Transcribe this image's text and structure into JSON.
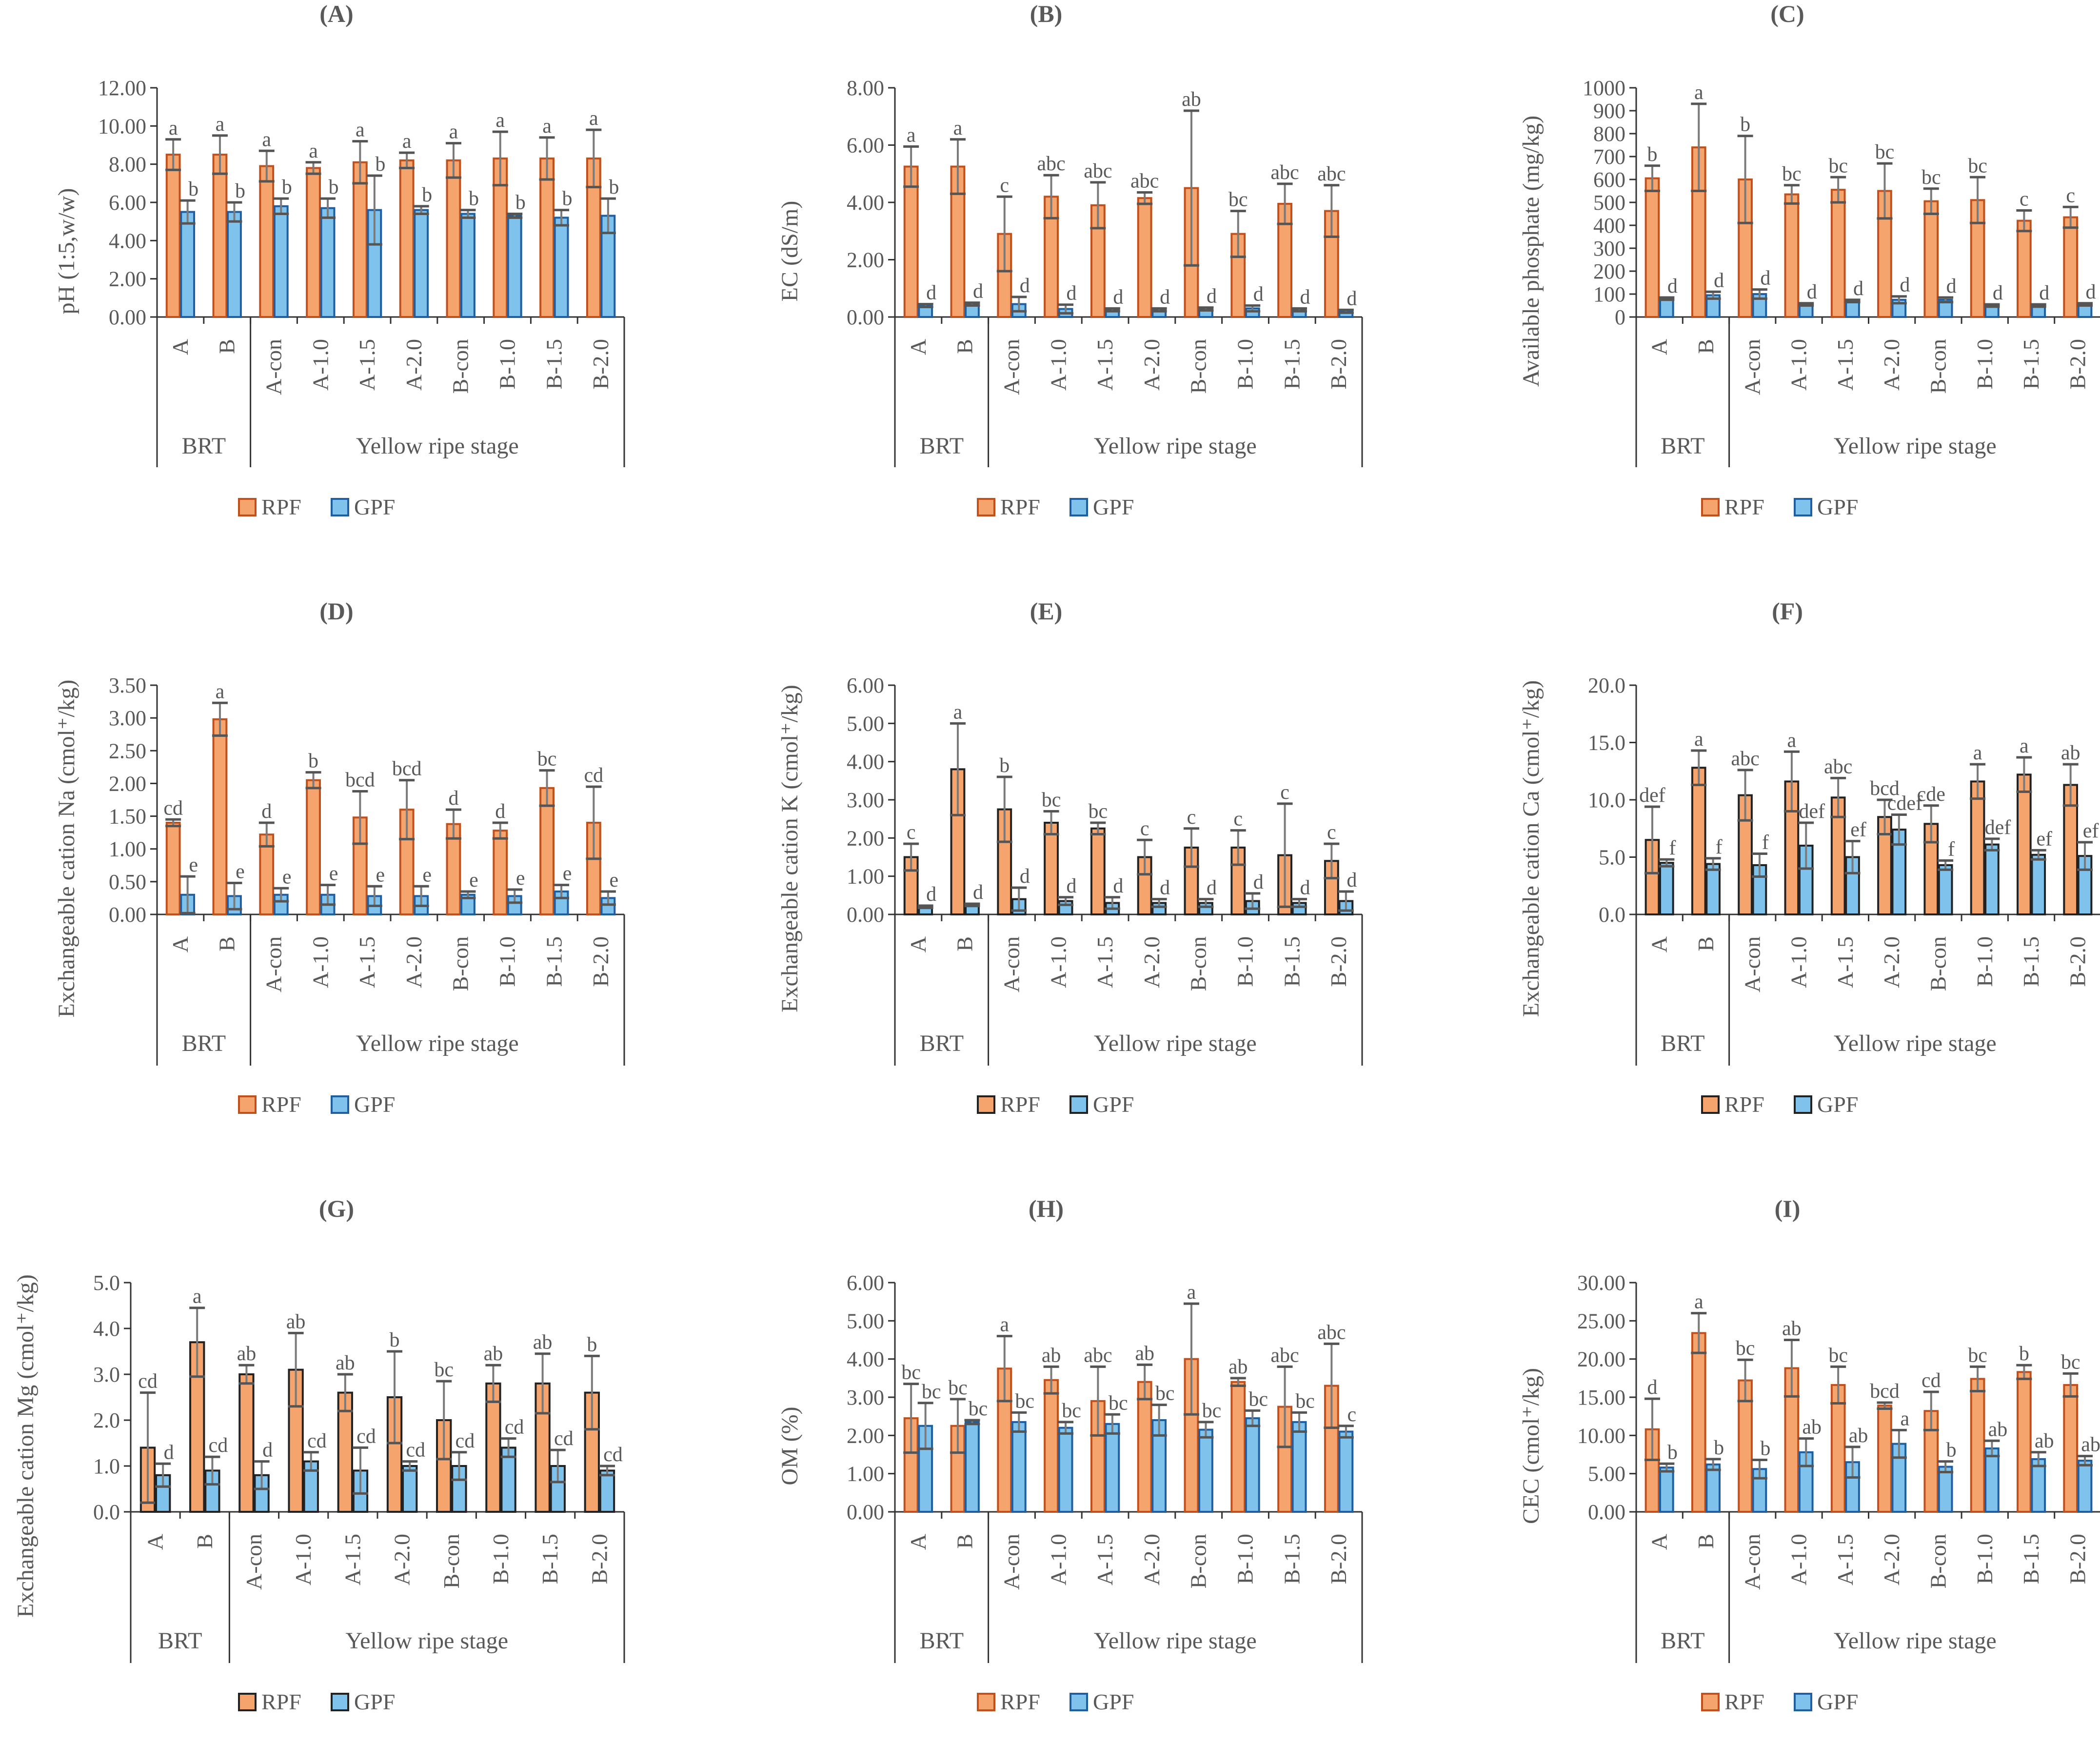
{
  "figure": {
    "group_labels": [
      "BRT",
      "Yellow ripe stage"
    ],
    "legend_labels": [
      "RPF",
      "GPF"
    ],
    "series_colors": {
      "RPF": "#F4A46C",
      "GPF": "#7FC3EC"
    },
    "bar_edge_colors": [
      "#C0501C",
      "#1F5FA0",
      "#222222"
    ],
    "error_bar_color": "#7a7a7a",
    "axis_color": "#333333",
    "text_color": "#595959"
  },
  "chart_data": [
    {
      "panel": "(A)",
      "type": "bar",
      "ylabel": "pH (1:5,w/w)",
      "ylim": [
        0,
        12
      ],
      "yticks": [
        "0.00",
        "2.00",
        "4.00",
        "6.00",
        "8.00",
        "10.00",
        "12.00"
      ],
      "categories": [
        "A",
        "B",
        "A-con",
        "A-1.0",
        "A-1.5",
        "A-2.0",
        "B-con",
        "B-1.0",
        "B-1.5",
        "B-2.0"
      ],
      "series": [
        {
          "name": "RPF",
          "values": [
            8.5,
            8.5,
            7.9,
            7.8,
            8.1,
            8.2,
            8.2,
            8.3,
            8.3,
            8.3
          ],
          "errors": [
            0.8,
            1.0,
            0.8,
            0.3,
            1.1,
            0.4,
            0.9,
            1.4,
            1.1,
            1.5
          ],
          "letters": [
            "a",
            "a",
            "a",
            "a",
            "a",
            "a",
            "a",
            "a",
            "a",
            "a"
          ]
        },
        {
          "name": "GPF",
          "values": [
            5.5,
            5.5,
            5.8,
            5.7,
            5.6,
            5.6,
            5.4,
            5.3,
            5.2,
            5.3
          ],
          "errors": [
            0.6,
            0.5,
            0.4,
            0.5,
            1.8,
            0.2,
            0.2,
            0.1,
            0.4,
            0.9
          ],
          "letters": [
            "b",
            "b",
            "b",
            "b",
            "b",
            "b",
            "b",
            "b",
            "b",
            "b"
          ]
        }
      ]
    },
    {
      "panel": "(B)",
      "type": "bar",
      "ylabel": "EC (dS/m)",
      "ylim": [
        0,
        8
      ],
      "yticks": [
        "0.00",
        "2.00",
        "4.00",
        "6.00",
        "8.00"
      ],
      "categories": [
        "A",
        "B",
        "A-con",
        "A-1.0",
        "A-1.5",
        "A-2.0",
        "B-con",
        "B-1.0",
        "B-1.5",
        "B-2.0"
      ],
      "series": [
        {
          "name": "RPF",
          "values": [
            5.25,
            5.25,
            2.9,
            4.2,
            3.9,
            4.15,
            4.5,
            2.9,
            3.95,
            3.7
          ],
          "errors": [
            0.7,
            0.95,
            1.3,
            0.75,
            0.8,
            0.2,
            2.7,
            0.8,
            0.7,
            0.9
          ],
          "letters": [
            "a",
            "a",
            "c",
            "abc",
            "abc",
            "abc",
            "ab",
            "bc",
            "abc",
            "abc"
          ]
        },
        {
          "name": "GPF",
          "values": [
            0.4,
            0.45,
            0.45,
            0.28,
            0.25,
            0.25,
            0.28,
            0.3,
            0.25,
            0.2
          ],
          "errors": [
            0.05,
            0.05,
            0.25,
            0.15,
            0.05,
            0.05,
            0.05,
            0.1,
            0.05,
            0.05
          ],
          "letters": [
            "d",
            "d",
            "d",
            "d",
            "d",
            "d",
            "d",
            "d",
            "d",
            "d"
          ]
        }
      ]
    },
    {
      "panel": "(C)",
      "type": "bar",
      "ylabel": "Available phosphate (mg/kg)",
      "ylim": [
        0,
        1000
      ],
      "yticks": [
        "0",
        "100",
        "200",
        "300",
        "400",
        "500",
        "600",
        "700",
        "800",
        "900",
        "1000"
      ],
      "categories": [
        "A",
        "B",
        "A-con",
        "A-1.0",
        "A-1.5",
        "A-2.0",
        "B-con",
        "B-1.0",
        "B-1.5",
        "B-2.0"
      ],
      "series": [
        {
          "name": "RPF",
          "values": [
            605,
            740,
            600,
            535,
            555,
            550,
            505,
            510,
            420,
            435
          ],
          "errors": [
            55,
            190,
            190,
            40,
            55,
            120,
            55,
            100,
            45,
            45
          ],
          "letters": [
            "b",
            "a",
            "b",
            "bc",
            "bc",
            "bc",
            "bc",
            "bc",
            "c",
            "c"
          ]
        },
        {
          "name": "GPF",
          "values": [
            80,
            95,
            100,
            55,
            70,
            75,
            75,
            50,
            50,
            55
          ],
          "errors": [
            5,
            15,
            20,
            5,
            5,
            15,
            10,
            5,
            5,
            5
          ],
          "letters": [
            "d",
            "d",
            "d",
            "d",
            "d",
            "d",
            "d",
            "d",
            "d",
            "d"
          ]
        }
      ]
    },
    {
      "panel": "(D)",
      "type": "bar",
      "ylabel": "Exchangeable cation Na (cmol⁺/kg)",
      "ylim": [
        0,
        3.5
      ],
      "yticks": [
        "0.00",
        "0.50",
        "1.00",
        "1.50",
        "2.00",
        "2.50",
        "3.00",
        "3.50"
      ],
      "categories": [
        "A",
        "B",
        "A-con",
        "A-1.0",
        "A-1.5",
        "A-2.0",
        "B-con",
        "B-1.0",
        "B-1.5",
        "B-2.0"
      ],
      "series": [
        {
          "name": "RPF",
          "values": [
            1.4,
            2.98,
            1.22,
            2.05,
            1.48,
            1.6,
            1.38,
            1.28,
            1.93,
            1.4
          ],
          "errors": [
            0.05,
            0.25,
            0.18,
            0.12,
            0.4,
            0.45,
            0.22,
            0.12,
            0.27,
            0.55
          ],
          "letters": [
            "cd",
            "a",
            "d",
            "b",
            "bcd",
            "bcd",
            "d",
            "d",
            "bc",
            "cd"
          ]
        },
        {
          "name": "GPF",
          "values": [
            0.3,
            0.28,
            0.3,
            0.3,
            0.28,
            0.28,
            0.3,
            0.28,
            0.35,
            0.25
          ],
          "errors": [
            0.28,
            0.2,
            0.1,
            0.15,
            0.15,
            0.15,
            0.05,
            0.1,
            0.1,
            0.1
          ],
          "letters": [
            "e",
            "e",
            "e",
            "e",
            "e",
            "e",
            "e",
            "e",
            "e",
            "e"
          ]
        }
      ]
    },
    {
      "panel": "(E)",
      "type": "bar",
      "ylabel": "Exchangeable cation K (cmol⁺/kg)",
      "ylim": [
        0,
        6
      ],
      "yticks": [
        "0.00",
        "1.00",
        "2.00",
        "3.00",
        "4.00",
        "5.00",
        "6.00"
      ],
      "categories": [
        "A",
        "B",
        "A-con",
        "A-1.0",
        "A-1.5",
        "A-2.0",
        "B-con",
        "B-1.0",
        "B-1.5",
        "B-2.0"
      ],
      "series": [
        {
          "name": "RPF",
          "values": [
            1.5,
            3.8,
            2.75,
            2.4,
            2.25,
            1.5,
            1.75,
            1.75,
            1.55,
            1.4
          ],
          "errors": [
            0.35,
            1.2,
            0.85,
            0.3,
            0.15,
            0.45,
            0.5,
            0.45,
            1.35,
            0.45
          ],
          "letters": [
            "c",
            "a",
            "b",
            "bc",
            "bc",
            "c",
            "c",
            "c",
            "c",
            "c"
          ]
        },
        {
          "name": "GPF",
          "values": [
            0.2,
            0.25,
            0.4,
            0.35,
            0.3,
            0.3,
            0.3,
            0.35,
            0.3,
            0.35
          ],
          "errors": [
            0.03,
            0.03,
            0.3,
            0.1,
            0.15,
            0.1,
            0.1,
            0.2,
            0.1,
            0.25
          ],
          "letters": [
            "d",
            "d",
            "d",
            "d",
            "d",
            "d",
            "d",
            "d",
            "d",
            "d"
          ]
        }
      ]
    },
    {
      "panel": "(F)",
      "type": "bar",
      "ylabel": "Exchangeable cation Ca (cmol⁺/kg)",
      "ylim": [
        0,
        20
      ],
      "yticks": [
        "0.0",
        "5.0",
        "10.0",
        "15.0",
        "20.0"
      ],
      "categories": [
        "A",
        "B",
        "A-con",
        "A-1.0",
        "A-1.5",
        "A-2.0",
        "B-con",
        "B-1.0",
        "B-1.5",
        "B-2.0"
      ],
      "series": [
        {
          "name": "RPF",
          "values": [
            6.5,
            12.8,
            10.4,
            11.6,
            10.2,
            8.5,
            7.9,
            11.6,
            12.2,
            11.3
          ],
          "errors": [
            2.9,
            1.5,
            2.2,
            2.6,
            1.7,
            1.5,
            1.6,
            1.5,
            1.5,
            1.8
          ],
          "letters": [
            "def",
            "a",
            "abc",
            "a",
            "abc",
            "bcd",
            "cde",
            "a",
            "a",
            "ab"
          ]
        },
        {
          "name": "GPF",
          "values": [
            4.5,
            4.4,
            4.3,
            6.0,
            5.0,
            7.4,
            4.3,
            6.1,
            5.2,
            5.1
          ],
          "errors": [
            0.3,
            0.5,
            1.0,
            2.0,
            1.4,
            1.3,
            0.4,
            0.5,
            0.4,
            1.2
          ],
          "letters": [
            "f",
            "f",
            "f",
            "def",
            "ef",
            "cdef",
            "f",
            "def",
            "ef",
            "ef"
          ]
        }
      ]
    },
    {
      "panel": "(G)",
      "type": "bar",
      "ylabel": "Exchangeable cation Mg (cmol⁺/kg)",
      "ylim": [
        0,
        5
      ],
      "yticks": [
        "0.0",
        "1.0",
        "2.0",
        "3.0",
        "4.0",
        "5.0"
      ],
      "categories": [
        "A",
        "B",
        "A-con",
        "A-1.0",
        "A-1.5",
        "A-2.0",
        "B-con",
        "B-1.0",
        "B-1.5",
        "B-2.0"
      ],
      "series": [
        {
          "name": "RPF",
          "values": [
            1.4,
            3.7,
            3.0,
            3.1,
            2.6,
            2.5,
            2.0,
            2.8,
            2.8,
            2.6
          ],
          "errors": [
            1.2,
            0.75,
            0.2,
            0.8,
            0.4,
            1.0,
            0.85,
            0.4,
            0.65,
            0.8
          ],
          "letters": [
            "cd",
            "a",
            "ab",
            "ab",
            "ab",
            "b",
            "bc",
            "ab",
            "ab",
            "b"
          ]
        },
        {
          "name": "GPF",
          "values": [
            0.8,
            0.9,
            0.8,
            1.1,
            0.9,
            1.0,
            1.0,
            1.4,
            1.0,
            0.9
          ],
          "errors": [
            0.25,
            0.3,
            0.3,
            0.2,
            0.5,
            0.1,
            0.3,
            0.2,
            0.35,
            0.1
          ],
          "letters": [
            "d",
            "cd",
            "d",
            "cd",
            "cd",
            "cd",
            "cd",
            "cd",
            "cd",
            "cd"
          ]
        }
      ]
    },
    {
      "panel": "(H)",
      "type": "bar",
      "ylabel": "OM (%)",
      "ylim": [
        0,
        6
      ],
      "yticks": [
        "0.00",
        "1.00",
        "2.00",
        "3.00",
        "4.00",
        "5.00",
        "6.00"
      ],
      "categories": [
        "A",
        "B",
        "A-con",
        "A-1.0",
        "A-1.5",
        "A-2.0",
        "B-con",
        "B-1.0",
        "B-1.5",
        "B-2.0"
      ],
      "series": [
        {
          "name": "RPF",
          "values": [
            2.45,
            2.25,
            3.75,
            3.45,
            2.9,
            3.4,
            4.0,
            3.4,
            2.75,
            3.3
          ],
          "errors": [
            0.9,
            0.7,
            0.85,
            0.35,
            0.9,
            0.45,
            1.45,
            0.1,
            1.05,
            1.1
          ],
          "letters": [
            "bc",
            "bc",
            "a",
            "ab",
            "abc",
            "ab",
            "a",
            "ab",
            "abc",
            "abc"
          ]
        },
        {
          "name": "GPF",
          "values": [
            2.25,
            2.35,
            2.35,
            2.2,
            2.3,
            2.4,
            2.15,
            2.45,
            2.35,
            2.1
          ],
          "errors": [
            0.6,
            0.05,
            0.25,
            0.15,
            0.25,
            0.4,
            0.2,
            0.2,
            0.25,
            0.15
          ],
          "letters": [
            "bc",
            "bc",
            "bc",
            "bc",
            "bc",
            "bc",
            "bc",
            "bc",
            "bc",
            "c"
          ]
        }
      ]
    },
    {
      "panel": "(I)",
      "type": "bar",
      "ylabel": "CEC (cmol⁺/kg)",
      "ylim": [
        0,
        30
      ],
      "yticks": [
        "0.00",
        "5.00",
        "10.00",
        "15.00",
        "20.00",
        "25.00",
        "30.00"
      ],
      "categories": [
        "A",
        "B",
        "A-con",
        "A-1.0",
        "A-1.5",
        "A-2.0",
        "B-con",
        "B-1.0",
        "B-1.5",
        "B-2.0"
      ],
      "series": [
        {
          "name": "RPF",
          "values": [
            10.8,
            23.4,
            17.2,
            18.8,
            16.6,
            13.9,
            13.2,
            17.4,
            18.3,
            16.6
          ],
          "errors": [
            4.0,
            2.6,
            2.7,
            3.7,
            2.4,
            0.4,
            2.5,
            1.6,
            0.9,
            1.5
          ],
          "letters": [
            "d",
            "a",
            "bc",
            "ab",
            "bc",
            "bcd",
            "cd",
            "bc",
            "b",
            "bc"
          ]
        },
        {
          "name": "GPF",
          "values": [
            5.8,
            6.2,
            5.6,
            7.8,
            6.5,
            8.9,
            5.9,
            8.3,
            6.9,
            6.7
          ],
          "errors": [
            0.5,
            0.7,
            1.2,
            1.8,
            2.0,
            1.8,
            0.7,
            1.0,
            0.9,
            0.6
          ],
          "letters": [
            "b",
            "b",
            "b",
            "ab",
            "ab",
            "a",
            "b",
            "ab",
            "ab",
            "ab"
          ]
        }
      ]
    }
  ]
}
